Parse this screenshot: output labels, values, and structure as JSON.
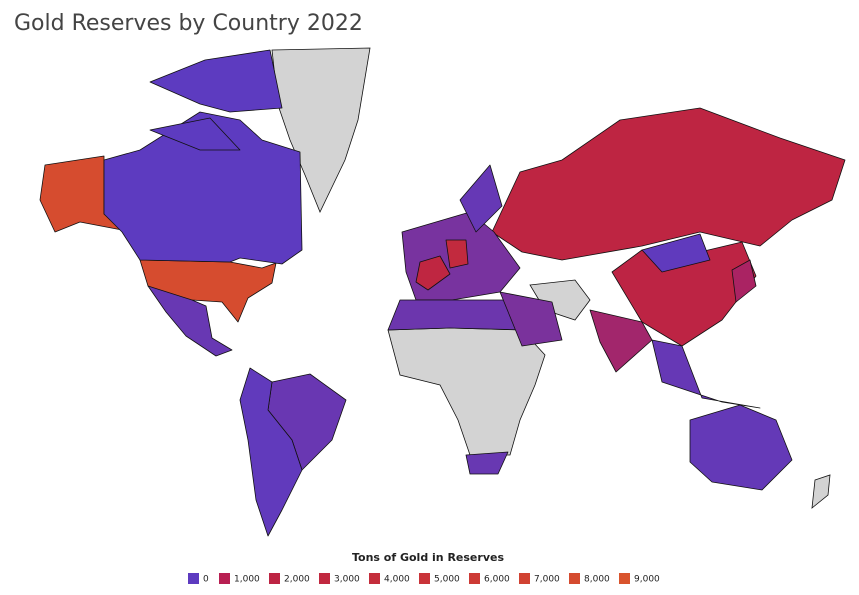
{
  "chart_data": {
    "type": "choropleth",
    "title": "Gold Reserves by Country 2022",
    "values": [
      8133,
      0,
      120,
      130,
      40,
      2299,
      1948,
      30,
      760,
      300,
      2437,
      3355,
      170,
      125,
      323,
      80,
      846,
      100,
      100,
      0
    ],
    "legend": {
      "title": "Tons of Gold in Reserves",
      "ticks": [
        0,
        {
          "value": 1000,
          "label": "1,000"
        },
        {
          "value": 2000,
          "label": "2,000"
        },
        {
          "value": 3000,
          "label": "3,000"
        },
        {
          "value": 4000,
          "label": "4,000"
        },
        {
          "value": 5000,
          "label": "5,000"
        },
        {
          "value": 6000,
          "label": "6,000"
        },
        {
          "value": 7000,
          "label": "7,000"
        },
        {
          "value": 8000,
          "label": "8,000"
        },
        {
          "value": 9000,
          "label": "9,000"
        }
      ],
      "colors": [
        "#5d3bc0",
        "#b81f52",
        "#bd2443",
        "#c1283f",
        "#c42d3b",
        "#c93339",
        "#cd3a35",
        "#d14232",
        "#d54b2f",
        "#d9542d"
      ]
    }
  }
}
